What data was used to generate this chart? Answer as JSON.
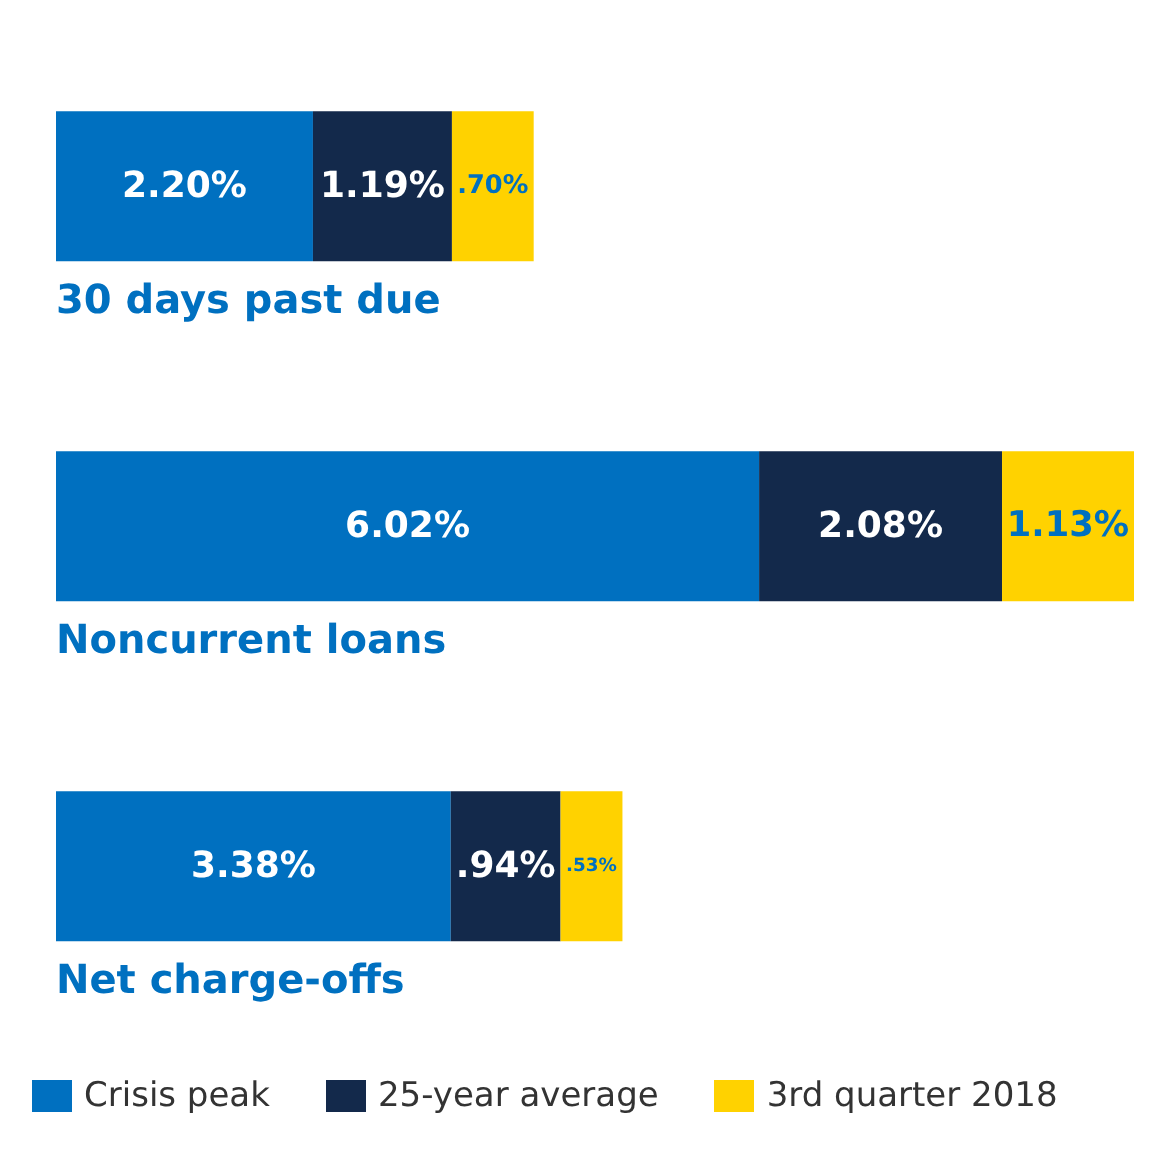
{
  "chart_data": {
    "type": "bar",
    "orientation": "horizontal",
    "stacked": true,
    "categories": [
      "30 days past due",
      "Noncurrent loans",
      "Net charge-offs"
    ],
    "series": [
      {
        "name": "Crisis peak",
        "color": "#0070c0",
        "values": [
          2.2,
          6.02,
          3.38
        ],
        "value_labels": [
          "2.20%",
          "6.02%",
          "3.38%"
        ]
      },
      {
        "name": "25-year average",
        "color": "#13294b",
        "values": [
          1.19,
          2.08,
          0.94
        ],
        "value_labels": [
          "1.19%",
          "2.08%",
          ".94%"
        ]
      },
      {
        "name": "3rd quarter 2018",
        "color": "#ffd200",
        "values": [
          0.7,
          1.13,
          0.53
        ],
        "value_labels": [
          ".70%",
          "1.13%",
          ".53%"
        ]
      }
    ],
    "legend": "bottom",
    "tick_labels": false
  }
}
